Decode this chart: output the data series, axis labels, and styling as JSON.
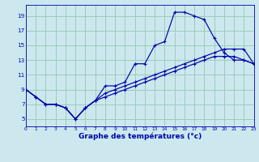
{
  "title": "Graphe des températures (°c)",
  "bg_color": "#cce8ee",
  "grid_color": "#99ccbb",
  "line_color": "#0000aa",
  "xlim": [
    0,
    23
  ],
  "ylim": [
    4.0,
    20.5
  ],
  "xticks": [
    0,
    1,
    2,
    3,
    4,
    5,
    6,
    7,
    8,
    9,
    10,
    11,
    12,
    13,
    14,
    15,
    16,
    17,
    18,
    19,
    20,
    21,
    22,
    23
  ],
  "yticks": [
    5,
    7,
    9,
    11,
    13,
    15,
    17,
    19
  ],
  "curve1_x": [
    0,
    1,
    2,
    3,
    4,
    5,
    6,
    7,
    8,
    9,
    10,
    11,
    12,
    13,
    14,
    15,
    16,
    17,
    18,
    19,
    20,
    21,
    22,
    23
  ],
  "curve1_y": [
    9.0,
    8.0,
    7.0,
    7.0,
    6.5,
    5.0,
    6.5,
    7.5,
    9.5,
    9.5,
    10.0,
    12.5,
    12.5,
    15.0,
    15.5,
    19.5,
    19.5,
    19.0,
    18.5,
    16.0,
    14.0,
    13.0,
    13.0,
    12.5
  ],
  "curve2_x": [
    0,
    1,
    2,
    3,
    4,
    5,
    6,
    7,
    8,
    9,
    10,
    11,
    12,
    13,
    14,
    15,
    16,
    17,
    18,
    19,
    20,
    21,
    22,
    23
  ],
  "curve2_y": [
    9.0,
    8.0,
    7.0,
    7.0,
    6.5,
    5.0,
    6.5,
    7.5,
    8.5,
    9.0,
    9.5,
    10.0,
    10.5,
    11.0,
    11.5,
    12.0,
    12.5,
    13.0,
    13.5,
    14.0,
    14.5,
    14.5,
    14.5,
    12.5
  ],
  "curve3_x": [
    0,
    1,
    2,
    3,
    4,
    5,
    6,
    7,
    8,
    9,
    10,
    11,
    12,
    13,
    14,
    15,
    16,
    17,
    18,
    19,
    20,
    21,
    22,
    23
  ],
  "curve3_y": [
    9.0,
    8.0,
    7.0,
    7.0,
    6.5,
    5.0,
    6.5,
    7.5,
    8.0,
    8.5,
    9.0,
    9.5,
    10.0,
    10.5,
    11.0,
    11.5,
    12.0,
    12.5,
    13.0,
    13.5,
    13.5,
    13.5,
    13.0,
    12.5
  ],
  "figw": 3.2,
  "figh": 2.0,
  "dpi": 100
}
